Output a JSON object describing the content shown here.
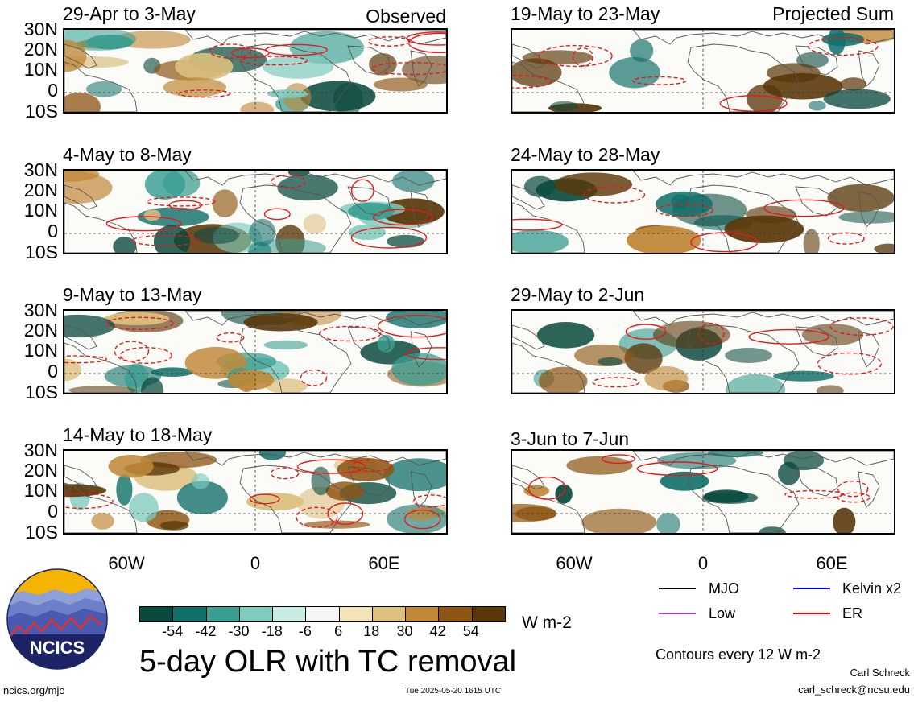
{
  "panels_observed": [
    {
      "title": "29-Apr to 3-May",
      "label": "Observed"
    },
    {
      "title": "4-May to 8-May",
      "label": ""
    },
    {
      "title": "9-May to 13-May",
      "label": ""
    },
    {
      "title": "14-May to 18-May",
      "label": ""
    }
  ],
  "panels_projected": [
    {
      "title": "19-May to 23-May",
      "label": "Projected Sum"
    },
    {
      "title": "24-May to 28-May",
      "label": ""
    },
    {
      "title": "29-May to 2-Jun",
      "label": ""
    },
    {
      "title": "3-Jun to 7-Jun",
      "label": ""
    }
  ],
  "lat_labels": [
    "30N",
    "20N",
    "10N",
    "0",
    "10S"
  ],
  "lon_labels": [
    "60W",
    "0",
    "60E"
  ],
  "colorbar": {
    "colors": [
      "#0a4a3e",
      "#12706a",
      "#3a9e92",
      "#7fcbbd",
      "#c8ebe3",
      "#f6f6f4",
      "#f3e3b8",
      "#dcc080",
      "#c08838",
      "#8e5614",
      "#5a3608"
    ],
    "ticks": [
      "-54",
      "-42",
      "-30",
      "-18",
      "-6",
      "6",
      "18",
      "30",
      "42",
      "54"
    ],
    "unit": "W m-2"
  },
  "main_title": "5-day OLR with TC removal",
  "legend": [
    {
      "name": "MJO",
      "color": "#000000"
    },
    {
      "name": "Kelvin x2",
      "color": "#0000ff"
    },
    {
      "name": "Low",
      "color": "#9b40d0"
    },
    {
      "name": "ER",
      "color": "#ff0000"
    }
  ],
  "contour_note": "Contours every 12 W m-2",
  "author": "Carl Schreck",
  "email": "carl_schreck@ncsu.edu",
  "website": "ncics.org/mjo",
  "timestamp": "Tue 2025-05-20 1615 UTC",
  "logo_text": "NCICS"
}
